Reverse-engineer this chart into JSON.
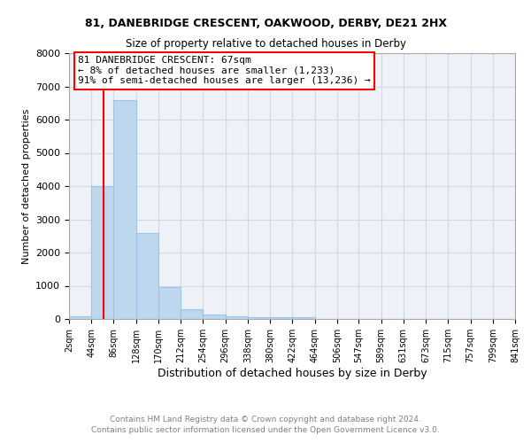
{
  "title1": "81, DANEBRIDGE CRESCENT, OAKWOOD, DERBY, DE21 2HX",
  "title2": "Size of property relative to detached houses in Derby",
  "xlabel": "Distribution of detached houses by size in Derby",
  "ylabel": "Number of detached properties",
  "footer1": "Contains HM Land Registry data © Crown copyright and database right 2024.",
  "footer2": "Contains public sector information licensed under the Open Government Licence v3.0.",
  "annotation_line1": "81 DANEBRIDGE CRESCENT: 67sqm",
  "annotation_line2": "← 8% of detached houses are smaller (1,233)",
  "annotation_line3": "91% of semi-detached houses are larger (13,236) →",
  "bar_edges": [
    2,
    44,
    86,
    128,
    170,
    212,
    254,
    296,
    338,
    380,
    422,
    464,
    506,
    547,
    589,
    631,
    673,
    715,
    757,
    799,
    841
  ],
  "bar_heights": [
    70,
    4000,
    6600,
    2600,
    950,
    300,
    125,
    80,
    50,
    50,
    55,
    0,
    0,
    0,
    0,
    0,
    0,
    0,
    0,
    0
  ],
  "bar_color": "#bdd7ee",
  "bar_edge_color": "#9dc3e6",
  "red_line_x": 67,
  "ylim": [
    0,
    8000
  ],
  "xtick_labels": [
    "2sqm",
    "44sqm",
    "86sqm",
    "128sqm",
    "170sqm",
    "212sqm",
    "254sqm",
    "296sqm",
    "338sqm",
    "380sqm",
    "422sqm",
    "464sqm",
    "506sqm",
    "547sqm",
    "589sqm",
    "631sqm",
    "673sqm",
    "715sqm",
    "757sqm",
    "799sqm",
    "841sqm"
  ],
  "ytick_values": [
    0,
    1000,
    2000,
    3000,
    4000,
    5000,
    6000,
    7000,
    8000
  ],
  "grid_color": "#d0d8e4",
  "background_color": "#ffffff"
}
